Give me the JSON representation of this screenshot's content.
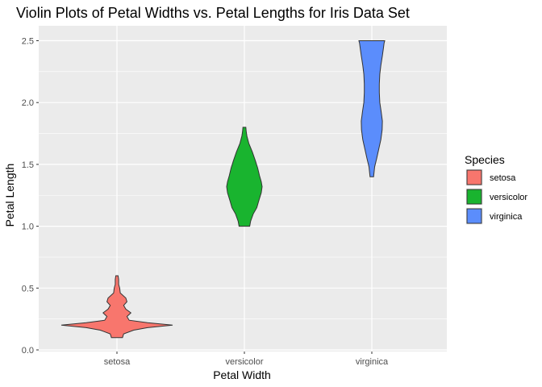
{
  "chart_data": {
    "type": "violin",
    "title": "Violin Plots of Petal Widths vs. Petal Lengths for Iris Data Set",
    "xlabel": "Petal Width",
    "ylabel": "Petal Length",
    "categories": [
      "setosa",
      "versicolor",
      "virginica"
    ],
    "ylim": [
      0,
      2.6
    ],
    "y_ticks": [
      0.0,
      0.5,
      1.0,
      1.5,
      2.0,
      2.5
    ],
    "y_tick_labels": [
      "0.0",
      "0.5",
      "1.0",
      "1.5",
      "2.0",
      "2.5"
    ],
    "grid": true,
    "legend": {
      "title": "Species",
      "position": "right",
      "entries": [
        "setosa",
        "versicolor",
        "virginica"
      ]
    },
    "colors": {
      "setosa": "#F8766D",
      "versicolor": "#19B42F",
      "virginica": "#5B8DFC",
      "panel": "#EBEBEB",
      "grid": "#FFFFFF"
    },
    "series": [
      {
        "name": "setosa",
        "range": [
          0.1,
          0.6
        ],
        "profile": [
          [
            0.1,
            0.1
          ],
          [
            0.13,
            0.12
          ],
          [
            0.16,
            0.3
          ],
          [
            0.18,
            0.55
          ],
          [
            0.2,
            1.0
          ],
          [
            0.22,
            0.55
          ],
          [
            0.24,
            0.22
          ],
          [
            0.27,
            0.18
          ],
          [
            0.3,
            0.25
          ],
          [
            0.33,
            0.16
          ],
          [
            0.36,
            0.12
          ],
          [
            0.39,
            0.18
          ],
          [
            0.42,
            0.16
          ],
          [
            0.46,
            0.06
          ],
          [
            0.5,
            0.05
          ],
          [
            0.53,
            0.03
          ],
          [
            0.57,
            0.03
          ],
          [
            0.6,
            0.02
          ]
        ]
      },
      {
        "name": "versicolor",
        "range": [
          1.0,
          1.8
        ],
        "profile": [
          [
            1.0,
            0.3
          ],
          [
            1.04,
            0.35
          ],
          [
            1.1,
            0.5
          ],
          [
            1.15,
            0.7
          ],
          [
            1.2,
            0.8
          ],
          [
            1.27,
            0.95
          ],
          [
            1.32,
            1.0
          ],
          [
            1.36,
            0.95
          ],
          [
            1.41,
            0.85
          ],
          [
            1.47,
            0.75
          ],
          [
            1.53,
            0.62
          ],
          [
            1.6,
            0.45
          ],
          [
            1.67,
            0.25
          ],
          [
            1.73,
            0.14
          ],
          [
            1.77,
            0.1
          ],
          [
            1.8,
            0.08
          ]
        ]
      },
      {
        "name": "virginica",
        "range": [
          1.4,
          2.5
        ],
        "profile": [
          [
            1.4,
            0.14
          ],
          [
            1.48,
            0.22
          ],
          [
            1.55,
            0.38
          ],
          [
            1.63,
            0.55
          ],
          [
            1.7,
            0.7
          ],
          [
            1.78,
            0.8
          ],
          [
            1.85,
            0.82
          ],
          [
            1.93,
            0.72
          ],
          [
            2.0,
            0.62
          ],
          [
            2.08,
            0.58
          ],
          [
            2.15,
            0.58
          ],
          [
            2.23,
            0.62
          ],
          [
            2.3,
            0.7
          ],
          [
            2.38,
            0.82
          ],
          [
            2.44,
            0.9
          ],
          [
            2.48,
            0.95
          ],
          [
            2.5,
            1.0
          ]
        ]
      }
    ]
  }
}
